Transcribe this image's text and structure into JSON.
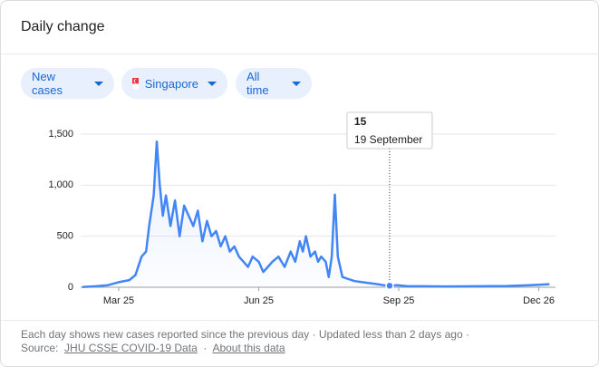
{
  "header": {
    "title": "Daily change"
  },
  "filters": [
    "New cases",
    "Singapore",
    "All time"
  ],
  "footer": {
    "note": "Each day shows new cases reported since the previous day · Updated less than 2 days ago ·",
    "source_label": "Source:",
    "source_link": "JHU CSSE COVID-19 Data",
    "separator": "·",
    "about_link": "About this data"
  },
  "chart_data": {
    "type": "line",
    "x": [
      61,
      70,
      78,
      85,
      92,
      96,
      100,
      103,
      105,
      108,
      110,
      112,
      114,
      116,
      119,
      122,
      125,
      128,
      131,
      134,
      137,
      140,
      143,
      146,
      149,
      152,
      155,
      158,
      161,
      164,
      167,
      170,
      173,
      177,
      180,
      183,
      186,
      190,
      194,
      198,
      201,
      204,
      206,
      208,
      211,
      214,
      216,
      218,
      221,
      223,
      225,
      227,
      229,
      232,
      236,
      240,
      245,
      250,
      255,
      259,
      263,
      268,
      275,
      285,
      300,
      320,
      340,
      355,
      361,
      368
    ],
    "series": [
      {
        "name": "New cases",
        "color": "#4285f4",
        "values": [
          2,
          10,
          20,
          50,
          70,
          120,
          300,
          350,
          600,
          900,
          1426,
          1000,
          700,
          900,
          600,
          850,
          500,
          800,
          700,
          600,
          750,
          450,
          650,
          500,
          550,
          400,
          500,
          350,
          400,
          300,
          250,
          200,
          300,
          250,
          150,
          200,
          250,
          300,
          200,
          350,
          250,
          450,
          350,
          500,
          300,
          350,
          250,
          300,
          250,
          100,
          300,
          908,
          300,
          100,
          80,
          60,
          50,
          40,
          30,
          20,
          15,
          20,
          10,
          10,
          8,
          10,
          12,
          20,
          25,
          30
        ]
      }
    ],
    "xlim": [
      60,
      372
    ],
    "xticks": [
      {
        "value": 85,
        "label": "Mar 25"
      },
      {
        "value": 177,
        "label": "Jun 25"
      },
      {
        "value": 269,
        "label": "Sep 25"
      },
      {
        "value": 361,
        "label": "Dec 26"
      }
    ],
    "ylim": [
      0,
      1500
    ],
    "yticks": [
      0,
      500,
      {
        "value": 1000,
        "label": "1,000"
      },
      {
        "value": 1500,
        "label": "1,500"
      }
    ],
    "grid": true,
    "tooltip": {
      "x": 263,
      "label": "19 September"
    }
  }
}
